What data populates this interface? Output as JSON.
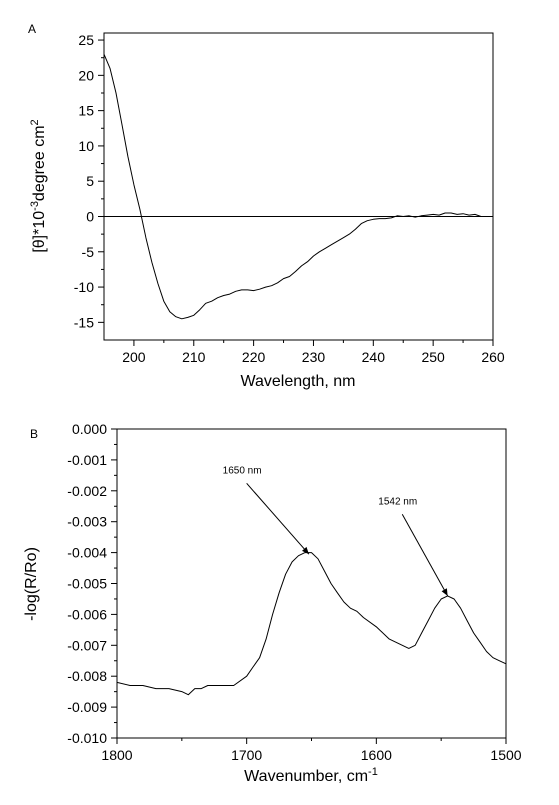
{
  "chart_data": [
    {
      "type": "line",
      "panel_label": "A",
      "xlabel": "Wavelength, nm",
      "ylabel": {
        "pre": "[θ]*10",
        "sup1": "-3",
        "mid": "degree cm",
        "sup2": "2"
      },
      "xlim": [
        195,
        260
      ],
      "ylim": [
        -17.5,
        26
      ],
      "xticks": [
        200,
        210,
        220,
        230,
        240,
        250,
        260
      ],
      "yticks": [
        -15,
        -10,
        -5,
        0,
        5,
        10,
        15,
        20,
        25
      ],
      "series": [
        {
          "x": [
            195,
            196,
            197,
            198,
            199,
            200,
            201,
            202,
            203,
            204,
            205,
            206,
            207,
            208,
            209,
            210,
            211,
            212,
            213,
            214,
            215,
            216,
            217,
            218,
            219,
            220,
            221,
            222,
            223,
            224,
            225,
            226,
            227,
            228,
            229,
            230,
            231,
            232,
            233,
            234,
            235,
            236,
            237,
            238,
            239,
            240,
            241,
            242,
            243,
            244,
            245,
            246,
            247,
            248,
            249,
            250,
            251,
            252,
            253,
            254,
            255,
            256,
            257,
            258,
            259,
            260
          ],
          "y": [
            23,
            21,
            17.5,
            13,
            8.5,
            4.5,
            1,
            -3,
            -6.5,
            -9.5,
            -12,
            -13.5,
            -14.2,
            -14.5,
            -14.3,
            -14,
            -13.2,
            -12.3,
            -12,
            -11.5,
            -11.2,
            -11,
            -10.6,
            -10.4,
            -10.4,
            -10.5,
            -10.3,
            -10,
            -9.8,
            -9.4,
            -8.8,
            -8.5,
            -7.8,
            -7,
            -6.4,
            -5.6,
            -5,
            -4.5,
            -4,
            -3.5,
            -3,
            -2.5,
            -1.8,
            -1,
            -0.6,
            -0.4,
            -0.3,
            -0.3,
            -0.2,
            0.1,
            0,
            0.1,
            -0.1,
            0.1,
            0.2,
            0.3,
            0.2,
            0.5,
            0.5,
            0.3,
            0.4,
            0.2,
            0.3,
            0,
            0,
            0
          ]
        },
        {
          "x": [
            195,
            260
          ],
          "y": [
            0,
            0
          ]
        }
      ]
    },
    {
      "type": "line",
      "panel_label": "B",
      "xlabel": {
        "pre": "Wavenumber, cm",
        "sup": "-1"
      },
      "ylabel": "-log(R/Ro)",
      "xlim": [
        1800,
        1500
      ],
      "ylim": [
        -0.01,
        0.0
      ],
      "xticks": [
        1800,
        1700,
        1600,
        1500
      ],
      "yticks": [
        "0.000",
        "-0.001",
        "-0.002",
        "-0.003",
        "-0.004",
        "-0.005",
        "-0.006",
        "-0.007",
        "-0.008",
        "-0.009",
        "-0.010"
      ],
      "series": [
        {
          "x": [
            1800,
            1790,
            1780,
            1770,
            1760,
            1750,
            1745,
            1740,
            1735,
            1730,
            1720,
            1715,
            1710,
            1700,
            1695,
            1690,
            1685,
            1680,
            1675,
            1670,
            1665,
            1660,
            1655,
            1650,
            1645,
            1640,
            1635,
            1630,
            1625,
            1620,
            1615,
            1610,
            1600,
            1590,
            1585,
            1580,
            1575,
            1570,
            1565,
            1560,
            1555,
            1550,
            1545,
            1540,
            1535,
            1530,
            1525,
            1520,
            1515,
            1510,
            1505,
            1500
          ],
          "y": [
            -0.0082,
            -0.0083,
            -0.0083,
            -0.0084,
            -0.0084,
            -0.0085,
            -0.0086,
            -0.0084,
            -0.0084,
            -0.0083,
            -0.0083,
            -0.0083,
            -0.0083,
            -0.008,
            -0.0077,
            -0.0074,
            -0.0068,
            -0.006,
            -0.0053,
            -0.0047,
            -0.0043,
            -0.0041,
            -0.004,
            -0.004,
            -0.0042,
            -0.0046,
            -0.005,
            -0.0053,
            -0.0056,
            -0.0058,
            -0.0059,
            -0.0061,
            -0.0064,
            -0.0068,
            -0.0069,
            -0.007,
            -0.0071,
            -0.007,
            -0.0066,
            -0.0062,
            -0.0058,
            -0.0055,
            -0.0054,
            -0.0055,
            -0.0058,
            -0.0062,
            -0.0066,
            -0.0069,
            -0.0072,
            -0.0074,
            -0.0075,
            -0.0076
          ]
        }
      ],
      "annotations": [
        {
          "text": "1650 nm",
          "point": [
            1652,
            -0.00405
          ],
          "label_at": [
            1700,
            -0.0015
          ]
        },
        {
          "text": "1542 nm",
          "point": [
            1545,
            -0.0054
          ],
          "label_at": [
            1580,
            -0.0025
          ]
        }
      ]
    }
  ]
}
